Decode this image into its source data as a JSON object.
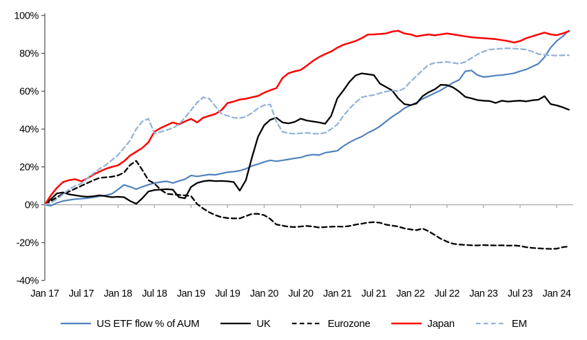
{
  "chart_data": {
    "type": "line",
    "title": "",
    "x_axis": {
      "tick_labels": [
        "Jan 17",
        "Jul 17",
        "Jan 18",
        "Jul 18",
        "Jan 19",
        "Jul 19",
        "Jan 20",
        "Jul 20",
        "Jan 21",
        "Jul 21",
        "Jan 22",
        "Jul 22",
        "Jan 23",
        "Jul 23",
        "Jan 24"
      ],
      "months_total": 87,
      "tick_every_months": 6
    },
    "y_axis": {
      "min": -40,
      "max": 100,
      "step": 20,
      "tick_labels": [
        "-40%",
        "-20%",
        "0%",
        "20%",
        "40%",
        "60%",
        "80%",
        "100%"
      ],
      "format": "percent"
    },
    "grid": "off",
    "legend_position": "bottom",
    "series": [
      {
        "name": "US ETF flow % of AUM",
        "color": "#4f81bd",
        "dash": "solid",
        "width": 2.2,
        "values": [
          0,
          -0.5,
          1,
          2,
          2.5,
          3,
          3.2,
          3.5,
          4,
          4.5,
          5,
          5.8,
          8,
          10.5,
          9.5,
          8.2,
          9.5,
          10.6,
          11.5,
          12,
          12.4,
          11.5,
          12.5,
          13.5,
          15.5,
          15,
          15.5,
          16,
          15.8,
          16.5,
          17.2,
          17.5,
          18,
          19,
          20.5,
          21.5,
          22.6,
          23.5,
          23,
          23.5,
          24,
          24.5,
          25,
          26,
          26.5,
          26.2,
          27.5,
          28,
          28.5,
          31,
          33,
          34.6,
          36,
          38,
          39.5,
          41.5,
          44,
          46.5,
          48.5,
          51,
          52.5,
          54,
          56,
          57.5,
          59,
          60.5,
          62.5,
          64.5,
          66,
          70.5,
          71,
          68.5,
          67.5,
          67.8,
          68.3,
          68.5,
          69,
          69.5,
          70.6,
          71.5,
          73,
          74.5,
          78,
          83,
          86.5,
          89,
          92
        ]
      },
      {
        "name": "UK",
        "color": "#000000",
        "dash": "solid",
        "width": 2.3,
        "values": [
          0,
          3,
          6,
          6.5,
          5.5,
          5,
          4.5,
          4.2,
          4.5,
          5,
          4.5,
          4,
          4.2,
          4,
          2,
          0.5,
          3.4,
          7,
          7.8,
          8,
          8.2,
          8,
          4,
          3.4,
          9.4,
          11.5,
          12.4,
          12.8,
          12.5,
          12.6,
          12.4,
          12,
          7.5,
          13,
          25,
          36,
          42,
          44.9,
          46,
          43.5,
          43,
          43.8,
          45.5,
          44.5,
          44,
          43.5,
          42.8,
          47,
          56.2,
          60.4,
          65,
          68.3,
          69.4,
          69,
          68.5,
          64,
          62.2,
          60.4,
          56.2,
          53.2,
          52.6,
          53.5,
          57.4,
          59.5,
          61,
          63.4,
          63.2,
          62,
          59.8,
          57,
          56.2,
          55.3,
          55,
          54.8,
          53.8,
          55,
          54.5,
          54.8,
          55,
          54.6,
          55.2,
          55.5,
          57.4,
          53.2,
          52.5,
          51.5,
          50.2
        ]
      },
      {
        "name": "Eurozone",
        "color": "#000000",
        "dash": "dashed",
        "width": 2.3,
        "values": [
          0,
          2,
          4,
          5.8,
          7,
          8.5,
          10,
          11.5,
          13,
          14.2,
          14.5,
          14.8,
          15.5,
          17,
          21,
          23.2,
          18.4,
          13,
          11.2,
          8,
          5.8,
          5.5,
          5.2,
          5,
          4.6,
          0.4,
          -2,
          -4,
          -5.5,
          -6.6,
          -7,
          -7.2,
          -7.2,
          -6,
          -4.8,
          -4.8,
          -5.5,
          -7.5,
          -10.4,
          -11,
          -11.6,
          -11.8,
          -11.5,
          -11.2,
          -11.5,
          -12,
          -11.8,
          -11.6,
          -11.5,
          -11.6,
          -11.2,
          -10.5,
          -10,
          -9.4,
          -9.2,
          -9.5,
          -10.5,
          -11,
          -11.5,
          -12.5,
          -13,
          -13.4,
          -12.6,
          -14,
          -16,
          -18,
          -19.5,
          -20.6,
          -21,
          -21.2,
          -21.4,
          -21.5,
          -21.3,
          -21.4,
          -21.5,
          -21.4,
          -21.6,
          -21.5,
          -21.8,
          -22.4,
          -22.8,
          -23,
          -23.2,
          -23.3,
          -23.2,
          -22.4,
          -22
        ]
      },
      {
        "name": "Japan",
        "color": "#ff0000",
        "dash": "solid",
        "width": 2.5,
        "values": [
          0,
          5,
          9,
          12,
          13,
          13.5,
          12.4,
          14,
          16,
          17.5,
          19,
          20,
          20.8,
          23,
          26,
          28,
          30,
          33,
          38.6,
          40.5,
          42,
          43.5,
          42.5,
          44,
          45.4,
          43.5,
          46,
          47,
          48,
          50,
          53.8,
          54.5,
          55.6,
          56,
          56.8,
          57.5,
          59.2,
          60.5,
          61.6,
          67,
          69.5,
          70.5,
          71.2,
          73.5,
          76,
          78,
          79.6,
          81,
          83,
          84.5,
          85.5,
          86.5,
          88,
          89.9,
          90,
          90.2,
          90.5,
          91.5,
          91.9,
          90.5,
          90,
          89,
          89.5,
          90,
          89.5,
          90,
          90.5,
          90,
          89.5,
          89,
          88.5,
          88.2,
          88,
          87.8,
          87.5,
          87,
          86.5,
          85.7,
          86.5,
          88,
          89,
          90,
          91,
          90,
          89.6,
          90.5,
          91.7
        ]
      },
      {
        "name": "EM",
        "color": "#95b3d7",
        "dash": "dashed",
        "width": 2.3,
        "values": [
          0,
          1,
          3,
          5.5,
          8.2,
          10,
          11.2,
          14,
          16.6,
          19,
          21,
          23.5,
          26.2,
          30,
          34,
          40,
          44,
          45.5,
          37.6,
          38.5,
          39.5,
          40.5,
          42.5,
          46,
          50,
          54,
          56.8,
          56,
          52,
          48,
          47,
          46,
          45.8,
          46.5,
          48.5,
          51,
          52.6,
          53,
          44,
          38.5,
          37.8,
          37.5,
          37.8,
          38,
          37.6,
          37.5,
          38,
          40,
          42.4,
          47,
          50.8,
          54,
          56.8,
          57.5,
          58,
          59,
          59.8,
          60.4,
          60,
          61.5,
          65,
          68,
          71.2,
          74,
          75,
          75.2,
          75.5,
          75,
          74.5,
          75.5,
          77.5,
          79.5,
          81,
          82,
          82.3,
          82.5,
          82.7,
          82.5,
          82.3,
          82,
          81,
          79.6,
          79.2,
          79,
          78.8,
          79,
          79
        ]
      }
    ]
  },
  "colors": {
    "background": "#ffffff",
    "y_axis_line": "#595959",
    "zero_axis_line": "#a6a6a6",
    "text": "#000000"
  }
}
